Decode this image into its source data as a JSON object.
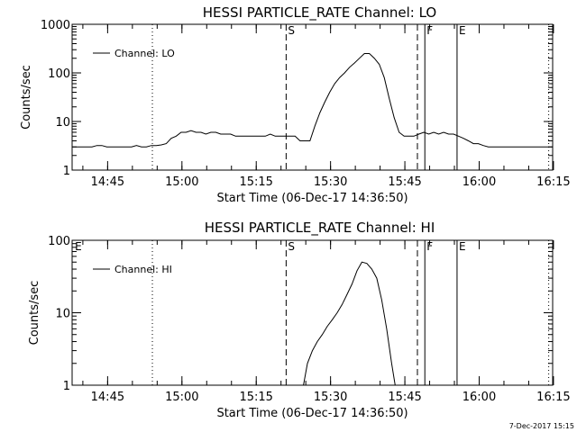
{
  "chart_data": [
    {
      "type": "line",
      "title": "HESSI PARTICLE_RATE Channel: LO",
      "xlabel": "Start Time (06-Dec-17 14:36:50)",
      "ylabel": "Counts/sec",
      "yscale": "log",
      "ylim": [
        1,
        1000
      ],
      "yticks": [
        "1",
        "10",
        "100",
        "1000"
      ],
      "xlim_minutes": [
        1,
        98
      ],
      "xticks": [
        "14:45",
        "15:00",
        "15:15",
        "15:30",
        "15:45",
        "16:00",
        "16:15"
      ],
      "legend": {
        "label": "Channel: LO",
        "placement": "top-left"
      },
      "series": [
        {
          "name": "Channel: LO",
          "x": [
            1,
            2,
            3,
            4,
            5,
            6,
            7,
            8,
            9,
            10,
            11,
            12,
            13,
            14,
            15,
            16,
            17,
            18,
            19,
            20,
            21,
            22,
            23,
            24,
            25,
            26,
            27,
            28,
            29,
            30,
            31,
            32,
            33,
            34,
            35,
            36,
            37,
            38,
            39,
            40,
            41,
            42,
            43,
            44,
            45,
            46,
            47,
            48,
            49,
            50,
            51,
            52,
            53,
            54,
            55,
            56,
            57,
            58,
            59,
            60,
            61,
            62,
            63,
            64,
            65,
            66,
            67,
            68,
            69,
            70,
            71,
            72,
            73,
            74,
            75,
            76,
            77,
            78,
            79,
            80,
            81,
            82,
            83,
            84,
            85,
            86,
            87,
            88,
            89,
            90,
            91,
            92,
            93,
            94,
            95,
            96,
            97,
            98
          ],
          "values": [
            3,
            3,
            3,
            3,
            3,
            3.2,
            3.2,
            3,
            3,
            3,
            3,
            3,
            3,
            3.2,
            3,
            3,
            3.2,
            3.2,
            3.3,
            3.5,
            4.5,
            5,
            6,
            6,
            6.5,
            6,
            6,
            5.5,
            6,
            6,
            5.5,
            5.5,
            5.5,
            5,
            5,
            5,
            5,
            5,
            5,
            5,
            5.5,
            5,
            5,
            5,
            5,
            5,
            4,
            4,
            4,
            8,
            15,
            25,
            40,
            60,
            80,
            100,
            130,
            160,
            200,
            250,
            250,
            200,
            150,
            80,
            30,
            12,
            6,
            5,
            5,
            5,
            5.5,
            6,
            5.5,
            6,
            5.5,
            6,
            5.5,
            5.5,
            5,
            4.5,
            4,
            3.5,
            3.5,
            3.2,
            3,
            3,
            3,
            3,
            3,
            3,
            3,
            3,
            3,
            3,
            3,
            3,
            3,
            3
          ],
          "markers": [
            {
              "label": "",
              "x_minutes": 17.2,
              "style": "dotted"
            },
            {
              "label": "S",
              "x_minutes": 44.2,
              "style": "dashed"
            },
            {
              "label": "",
              "x_minutes": 70.7,
              "style": "dashed"
            },
            {
              "label": "F",
              "x_minutes": 72.2,
              "style": "solid"
            },
            {
              "label": "E",
              "x_minutes": 78.7,
              "style": "solid"
            },
            {
              "label": "",
              "x_minutes": 97.2,
              "style": "dotted"
            }
          ]
        }
      ]
    },
    {
      "type": "line",
      "title": "HESSI PARTICLE_RATE Channel: HI",
      "xlabel": "Start Time (06-Dec-17 14:36:50)",
      "ylabel": "Counts/sec",
      "yscale": "log",
      "ylim": [
        1,
        100
      ],
      "yticks": [
        "1",
        "10",
        "100"
      ],
      "xlim_minutes": [
        1,
        98
      ],
      "xticks": [
        "14:45",
        "15:00",
        "15:15",
        "15:30",
        "15:45",
        "16:00",
        "16:15"
      ],
      "legend": {
        "label": "Channel: HI",
        "placement": "top-left"
      },
      "series": [
        {
          "name": "Channel: HI",
          "x": [
            47.7,
            48.5,
            49.5,
            50.5,
            51.5,
            52.5,
            53.5,
            54.5,
            55.5,
            56.5,
            57.5,
            58.5,
            59.5,
            60.5,
            61.5,
            62.5,
            63.5,
            64.5,
            65.5,
            66.2
          ],
          "values": [
            1,
            2,
            3,
            4,
            5,
            6.5,
            8,
            10,
            13,
            18,
            25,
            38,
            50,
            48,
            40,
            30,
            15,
            6,
            2,
            1
          ],
          "markers": [
            {
              "label": "E",
              "x_minutes": 1.2,
              "style": "none"
            },
            {
              "label": "",
              "x_minutes": 17.2,
              "style": "dotted"
            },
            {
              "label": "S",
              "x_minutes": 44.2,
              "style": "dashed"
            },
            {
              "label": "",
              "x_minutes": 70.7,
              "style": "dashed"
            },
            {
              "label": "F",
              "x_minutes": 72.2,
              "style": "solid"
            },
            {
              "label": "E",
              "x_minutes": 78.7,
              "style": "solid"
            },
            {
              "label": "",
              "x_minutes": 97.2,
              "style": "dotted"
            }
          ]
        }
      ]
    }
  ],
  "footer": {
    "timestamp": "7-Dec-2017 15:15"
  }
}
